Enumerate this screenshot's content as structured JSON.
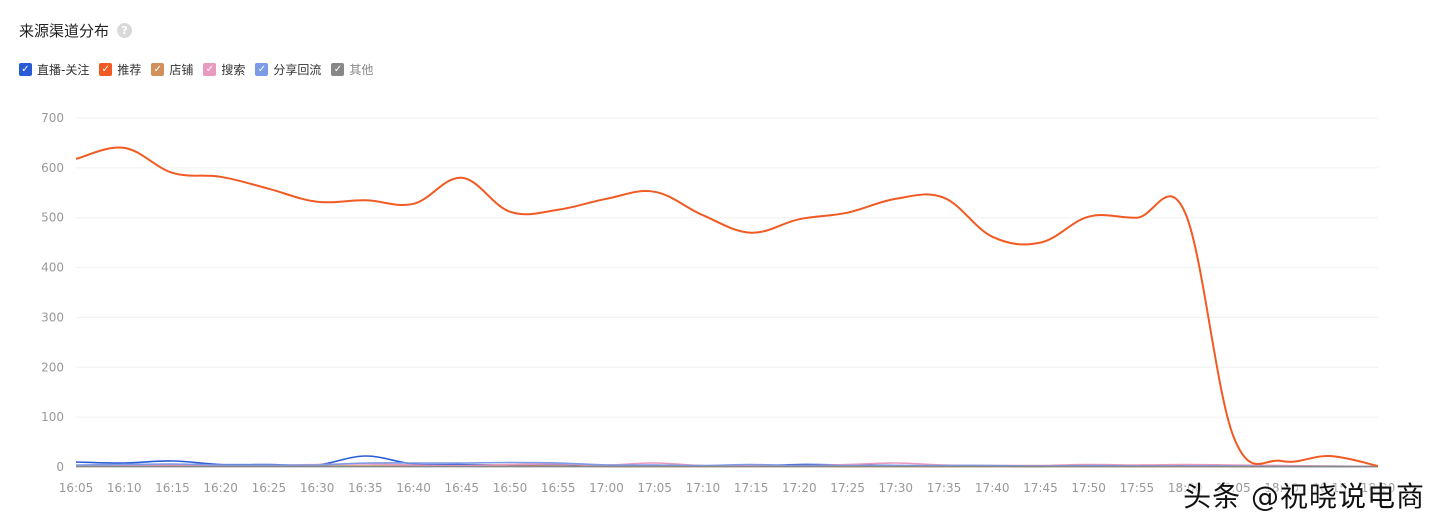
{
  "header": {
    "title": "来源渠道分布",
    "help_icon": "question-circle-icon"
  },
  "legend": [
    {
      "label": "直播-关注",
      "color": "#2a5bd7",
      "checked": true
    },
    {
      "label": "推荐",
      "color": "#f15a22",
      "checked": true
    },
    {
      "label": "店铺",
      "color": "#d2915a",
      "checked": true
    },
    {
      "label": "搜索",
      "color": "#e99abf",
      "checked": true
    },
    {
      "label": "分享回流",
      "color": "#7d9be6",
      "checked": true
    },
    {
      "label": "其他",
      "color": "#888888",
      "checked": true
    }
  ],
  "watermark": "头条 @祝晓说电商",
  "chart_data": {
    "type": "line",
    "title": "",
    "xlabel": "",
    "ylabel": "",
    "ylim": [
      0,
      700
    ],
    "yticks": [
      0,
      100,
      200,
      300,
      400,
      500,
      600,
      700
    ],
    "grid": true,
    "legend_position": "top-left",
    "x": [
      "16:05",
      "16:10",
      "16:15",
      "16:20",
      "16:25",
      "16:30",
      "16:35",
      "16:40",
      "16:45",
      "16:50",
      "16:55",
      "17:00",
      "17:05",
      "17:10",
      "17:15",
      "17:20",
      "17:25",
      "17:30",
      "17:35",
      "17:40",
      "17:45",
      "17:50",
      "17:55",
      "18:00",
      "18:05",
      "18:10",
      "18:15",
      "18:20"
    ],
    "series": [
      {
        "name": "直播-关注",
        "color": "#2a5bd7",
        "values": [
          10,
          8,
          12,
          5,
          5,
          4,
          22,
          6,
          5,
          4,
          5,
          3,
          3,
          2,
          2,
          5,
          4,
          3,
          2,
          2,
          1,
          4,
          2,
          2,
          1,
          1,
          1,
          1
        ]
      },
      {
        "name": "推荐",
        "color": "#f15a22",
        "values": [
          618,
          640,
          590,
          582,
          558,
          532,
          535,
          528,
          580,
          512,
          516,
          538,
          552,
          505,
          470,
          497,
          510,
          538,
          540,
          462,
          450,
          502,
          500,
          510,
          62,
          12,
          22,
          2
        ]
      },
      {
        "name": "店铺",
        "color": "#d2915a",
        "values": [
          2,
          2,
          2,
          2,
          2,
          2,
          2,
          2,
          2,
          2,
          2,
          1,
          1,
          1,
          1,
          1,
          1,
          1,
          1,
          1,
          1,
          1,
          1,
          1,
          1,
          1,
          1,
          1
        ]
      },
      {
        "name": "搜索",
        "color": "#e99abf",
        "values": [
          3,
          3,
          4,
          3,
          3,
          5,
          6,
          4,
          3,
          5,
          6,
          4,
          8,
          3,
          3,
          3,
          5,
          8,
          4,
          3,
          3,
          5,
          4,
          5,
          4,
          3,
          2,
          1
        ]
      },
      {
        "name": "分享回流",
        "color": "#7d9be6",
        "values": [
          4,
          5,
          6,
          4,
          4,
          4,
          8,
          8,
          8,
          9,
          8,
          4,
          4,
          3,
          5,
          3,
          3,
          3,
          3,
          3,
          2,
          3,
          2,
          2,
          2,
          1,
          1,
          1
        ]
      },
      {
        "name": "其他",
        "color": "#888888",
        "values": [
          1,
          1,
          1,
          1,
          1,
          1,
          1,
          1,
          1,
          1,
          1,
          1,
          1,
          1,
          1,
          1,
          1,
          1,
          1,
          1,
          1,
          1,
          1,
          1,
          1,
          1,
          1,
          1
        ]
      }
    ]
  }
}
